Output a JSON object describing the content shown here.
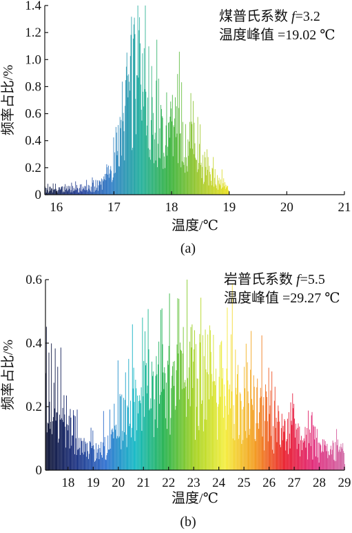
{
  "chart_data": [
    {
      "type": "bar",
      "panel": "(a)",
      "ylabel": "频率占比/%",
      "xlabel": "温度/℃",
      "xlim": [
        15.8,
        21
      ],
      "ylim": [
        0,
        1.4
      ],
      "xticks": [
        16,
        17,
        18,
        19,
        20,
        21
      ],
      "yticks": [
        0,
        0.2,
        0.4,
        0.6,
        0.8,
        1.0,
        1.2,
        1.4
      ],
      "yticklabels": [
        "0",
        "0.2",
        "0.4",
        "0.6",
        "0.8",
        "1.0",
        "1.2",
        "1.4"
      ],
      "annotation": {
        "line1_prefix": "煤普氏系数 ",
        "line1_var": "f",
        "line1_suffix": "=3.2",
        "line2": "温度峰值 =19.02 ℃"
      },
      "bin_width": 0.01,
      "envelope": [
        [
          15.8,
          0.05
        ],
        [
          16.0,
          0.05
        ],
        [
          16.3,
          0.06
        ],
        [
          16.5,
          0.07
        ],
        [
          16.7,
          0.08
        ],
        [
          16.85,
          0.15
        ],
        [
          17.0,
          0.45
        ],
        [
          17.15,
          0.75
        ],
        [
          17.3,
          1.15
        ],
        [
          17.4,
          1.22
        ],
        [
          17.5,
          1.12
        ],
        [
          17.6,
          1.0
        ],
        [
          17.7,
          0.82
        ],
        [
          17.8,
          0.75
        ],
        [
          17.9,
          0.72
        ],
        [
          18.0,
          0.7
        ],
        [
          18.1,
          0.72
        ],
        [
          18.2,
          0.6
        ],
        [
          18.3,
          0.5
        ],
        [
          18.4,
          0.4
        ],
        [
          18.6,
          0.25
        ],
        [
          18.8,
          0.14
        ],
        [
          18.95,
          0.09
        ],
        [
          19.0,
          0.02
        ]
      ],
      "gradient": [
        "#16224d",
        "#233e9a",
        "#2f7bc7",
        "#1fae9c",
        "#38b23a",
        "#a4c92a",
        "#f1e21c"
      ]
    },
    {
      "type": "bar",
      "panel": "(b)",
      "ylabel": "频率占比/%",
      "xlabel": "温度/℃",
      "xlim": [
        17.1,
        29
      ],
      "ylim": [
        0,
        0.6
      ],
      "xticks": [
        18,
        19,
        20,
        21,
        22,
        23,
        24,
        25,
        26,
        27,
        28,
        29
      ],
      "yticks": [
        0,
        0.2,
        0.4,
        0.6
      ],
      "yticklabels": [
        "0",
        "0.2",
        "0.4",
        "0.6"
      ],
      "annotation": {
        "line1_prefix": "岩普氏系数 ",
        "line1_var": "f",
        "line1_suffix": "=5.5",
        "line2": "温度峰值 =29.27 ℃"
      },
      "bin_width": 0.025,
      "envelope": [
        [
          17.1,
          0.3
        ],
        [
          17.5,
          0.24
        ],
        [
          18.0,
          0.2
        ],
        [
          18.4,
          0.12
        ],
        [
          18.7,
          0.08
        ],
        [
          19.2,
          0.08
        ],
        [
          19.5,
          0.12
        ],
        [
          19.8,
          0.2
        ],
        [
          20.2,
          0.26
        ],
        [
          20.8,
          0.3
        ],
        [
          21.5,
          0.3
        ],
        [
          22.0,
          0.34
        ],
        [
          22.5,
          0.36
        ],
        [
          23.2,
          0.38
        ],
        [
          23.8,
          0.38
        ],
        [
          24.3,
          0.36
        ],
        [
          24.8,
          0.32
        ],
        [
          25.3,
          0.26
        ],
        [
          25.8,
          0.24
        ],
        [
          26.2,
          0.2
        ],
        [
          26.6,
          0.16
        ],
        [
          27.0,
          0.14
        ],
        [
          27.5,
          0.12
        ],
        [
          28.0,
          0.09
        ],
        [
          28.6,
          0.08
        ],
        [
          29.0,
          0.07
        ]
      ],
      "gradient": [
        "#0b1030",
        "#1a2f80",
        "#2d6fd0",
        "#13b9c4",
        "#26b24a",
        "#a6d21e",
        "#f4ee3c",
        "#f39a1c",
        "#e91c2c",
        "#e0287a",
        "#d06aa6"
      ]
    }
  ],
  "captions": [
    "(a)",
    "(b)"
  ]
}
